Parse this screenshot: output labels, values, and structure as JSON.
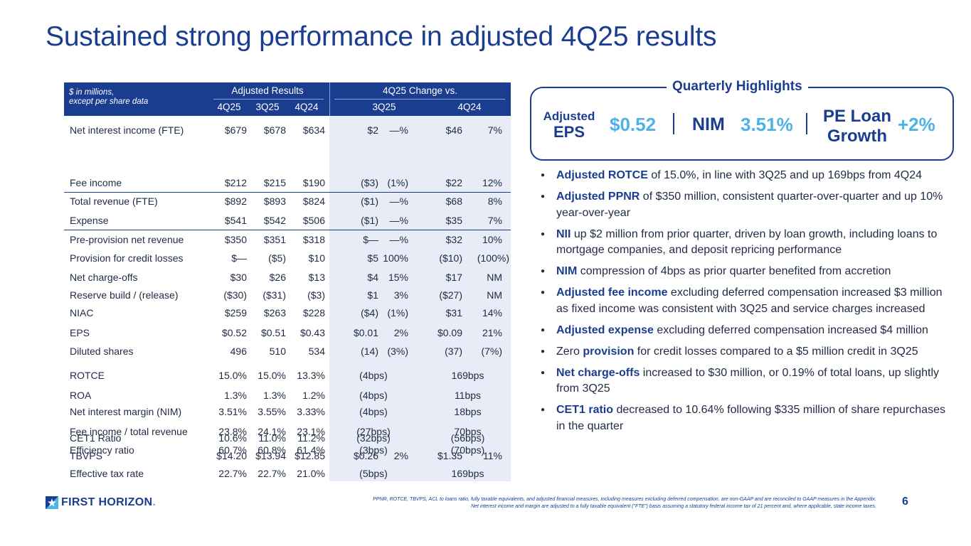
{
  "title": "Sustained strong performance in adjusted 4Q25 results",
  "table": {
    "note_line1": "$ in millions,",
    "note_line2": "except per share data",
    "group_adjusted": "Adjusted Results",
    "group_change": "4Q25 Change vs.",
    "col_4q25": "4Q25",
    "col_3q25": "3Q25",
    "col_4q24": "4Q24",
    "change_3q25": "3Q25",
    "change_4q24": "4Q24",
    "rows": [
      {
        "label": "Net interest income (FTE)",
        "v1": "$679",
        "v2": "$678",
        "v3": "$634",
        "d1": "$2",
        "p1": "—%",
        "d2": "$46",
        "p2": "7%"
      },
      {
        "label": "Fee income",
        "v1": "$212",
        "v2": "$215",
        "v3": "$190",
        "d1": "($3)",
        "p1": "(1%)",
        "d2": "$22",
        "p2": "12%"
      },
      {
        "label": "Total revenue (FTE)",
        "v1": "$892",
        "v2": "$893",
        "v3": "$824",
        "d1": "($1)",
        "p1": "—%",
        "d2": "$68",
        "p2": "8%"
      },
      {
        "label": "Expense",
        "v1": "$541",
        "v2": "$542",
        "v3": "$506",
        "d1": "($1)",
        "p1": "—%",
        "d2": "$35",
        "p2": "7%"
      },
      {
        "label": "Pre-provision net revenue",
        "v1": "$350",
        "v2": "$351",
        "v3": "$318",
        "d1": "$—",
        "p1": "—%",
        "d2": "$32",
        "p2": "10%"
      },
      {
        "label": "Provision for credit losses",
        "v1": "$—",
        "v2": "($5)",
        "v3": "$10",
        "d1": "$5",
        "p1": "100%",
        "d2": "($10)",
        "p2": "(100%)"
      },
      {
        "label": "Net charge-offs",
        "v1": "$30",
        "v2": "$26",
        "v3": "$13",
        "d1": "$4",
        "p1": "15%",
        "d2": "$17",
        "p2": "NM"
      },
      {
        "label": "Reserve build / (release)",
        "v1": "($30)",
        "v2": "($31)",
        "v3": "($3)",
        "d1": "$1",
        "p1": "3%",
        "d2": "($27)",
        "p2": "NM"
      },
      {
        "label": "NIAC",
        "v1": "$259",
        "v2": "$263",
        "v3": "$228",
        "d1": "($4)",
        "p1": "(1%)",
        "d2": "$31",
        "p2": "14%"
      },
      {
        "label": "EPS",
        "v1": "$0.52",
        "v2": "$0.51",
        "v3": "$0.43",
        "d1": "$0.01",
        "p1": "2%",
        "d2": "$0.09",
        "p2": "21%"
      },
      {
        "label": "Diluted shares",
        "v1": "496",
        "v2": "510",
        "v3": "534",
        "d1": "(14)",
        "p1": "(3%)",
        "d2": "(37)",
        "p2": "(7%)"
      }
    ],
    "ratio_rows": [
      {
        "label": "ROTCE",
        "v1": "15.0%",
        "v2": "15.0%",
        "v3": "13.3%",
        "c1": "(4bps)",
        "c2": "169bps"
      },
      {
        "label": "ROA",
        "v1": "1.3%",
        "v2": "1.3%",
        "v3": "1.2%",
        "c1": "(4bps)",
        "c2": "11bps"
      },
      {
        "label": "Net interest margin (NIM)",
        "v1": "3.51%",
        "v2": "3.55%",
        "v3": "3.33%",
        "c1": "(4bps)",
        "c2": "18bps"
      },
      {
        "label": "Fee income / total revenue",
        "v1": "23.8%",
        "v2": "24.1%",
        "v3": "23.1%",
        "c1": "(27bps)",
        "c2": "70bps"
      },
      {
        "label": "Efficiency ratio",
        "v1": "60.7%",
        "v2": "60.8%",
        "v3": "61.4%",
        "c1": "(3bps)",
        "c2": "(70bps)"
      },
      {
        "label": "CET1 Ratio",
        "v1": "10.6%",
        "v2": "11.0%",
        "v3": "11.2%",
        "c1": "(32bps)",
        "c2": "(56bps)"
      }
    ],
    "tbvps": {
      "label": "TBVPS",
      "v1": "$14.20",
      "v2": "$13.94",
      "v3": "$12.85",
      "d1": "$0.26",
      "p1": "2%",
      "d2": "$1.35",
      "p2": "11%"
    },
    "tax": {
      "label": "Effective tax rate",
      "v1": "22.7%",
      "v2": "22.7%",
      "v3": "21.0%",
      "c1": "(5bps)",
      "c2": "169bps"
    }
  },
  "highlights": {
    "title": "Quarterly Highlights",
    "eps_small": "Adjusted",
    "eps_big": "EPS",
    "eps_value": "$0.52",
    "nim_label": "NIM",
    "nim_value": "3.51%",
    "pe_line1": "PE Loan",
    "pe_line2": "Growth",
    "pe_value": "+2%"
  },
  "bullets": [
    {
      "bold": "Adjusted ROTCE",
      "text": " of 15.0%, in line with 3Q25 and up 169bps from 4Q24"
    },
    {
      "bold": "Adjusted PPNR",
      "text": " of $350 million, consistent quarter-over-quarter and up 10% year-over-year"
    },
    {
      "bold": "NII",
      "text": " up $2 million from prior quarter, driven by loan growth, including loans to mortgage companies, and deposit repricing performance"
    },
    {
      "bold": "NIM",
      "text": " compression of 4bps as prior quarter benefited from accretion"
    },
    {
      "bold": "Adjusted fee income",
      "text": " excluding deferred compensation increased $3 million as fixed income was consistent with 3Q25 and service charges increased"
    },
    {
      "bold": "Adjusted expense",
      "text": " excluding deferred compensation increased $4 million"
    },
    {
      "pre": "Zero ",
      "bold": "provision",
      "text": " for credit losses compared to a $5 million credit in 3Q25"
    },
    {
      "bold": "Net charge-offs",
      "text": " increased to $30 million, or 0.19% of total loans, up slightly from 3Q25"
    },
    {
      "bold": "CET1 ratio",
      "text": " decreased to 10.64% following $335 million of share repurchases in the quarter"
    }
  ],
  "footer": {
    "logo_main": "FIRST HORIZON",
    "logo_dot": ".",
    "line1": "PPNR, ROTCE, TBVPS, ACL to loans ratio, fully taxable equivalents, and adjusted financial measures, including measures excluding deferred compensation, are non-GAAP and are reconciled to GAAP measures in the Appendix.",
    "line2": "Net interest income and margin are adjusted to a fully taxable equivalent (\"FTE\") basis assuming a statutory federal income tax of 21 percent and, where applicable, state income taxes.",
    "page": "6"
  },
  "colors": {
    "navy": "#1b3d8f",
    "accent": "#4db3e6",
    "band": "#e7ecf7"
  }
}
